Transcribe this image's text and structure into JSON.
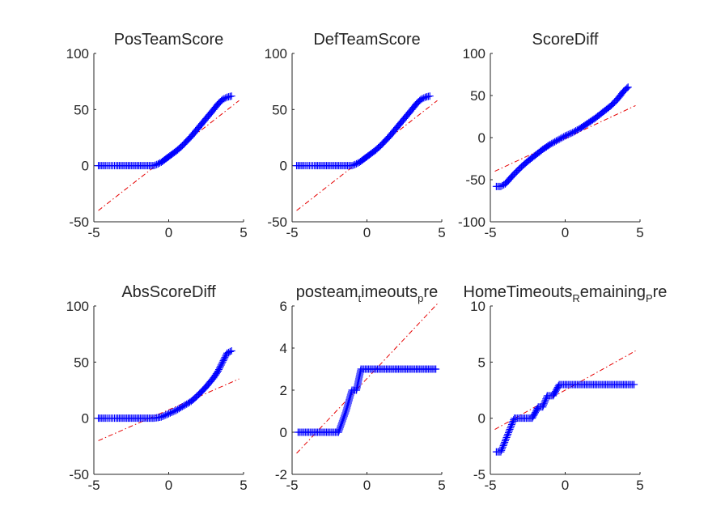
{
  "chart_data": [
    {
      "type": "scatter",
      "title": "PosTeamScore",
      "title_parts": [
        {
          "text": "PosTeamScore"
        }
      ],
      "xlim": [
        -5,
        5
      ],
      "ylim": [
        -50,
        100
      ],
      "xticks": [
        -5,
        0,
        5
      ],
      "yticks": [
        -50,
        0,
        50,
        100
      ],
      "marker_color": "#0000ff",
      "line_color": "#e60000",
      "reference_line": {
        "x": [
          -4.7,
          4.7
        ],
        "y": [
          -40,
          58
        ]
      },
      "series": [
        {
          "x": [
            -4.7,
            -4.2,
            -3.5,
            -3.0,
            -2.5,
            -2.0,
            -1.5,
            -1.0,
            -0.8,
            -0.5,
            -0.2,
            0.0,
            0.3,
            0.6,
            1.0,
            1.5,
            2.0,
            2.5,
            3.0,
            3.3,
            3.6,
            3.9,
            4.2
          ],
          "y": [
            0,
            0,
            0,
            0,
            0,
            0,
            0,
            0,
            1,
            3,
            6,
            8,
            11,
            14,
            19,
            26,
            34,
            42,
            50,
            55,
            59,
            61,
            62
          ]
        }
      ]
    },
    {
      "type": "scatter",
      "title": "DefTeamScore",
      "title_parts": [
        {
          "text": "DefTeamScore"
        }
      ],
      "xlim": [
        -5,
        5
      ],
      "ylim": [
        -50,
        100
      ],
      "xticks": [
        -5,
        0,
        5
      ],
      "yticks": [
        -50,
        0,
        50,
        100
      ],
      "marker_color": "#0000ff",
      "line_color": "#e60000",
      "reference_line": {
        "x": [
          -4.7,
          4.7
        ],
        "y": [
          -40,
          58
        ]
      },
      "series": [
        {
          "x": [
            -4.7,
            -4.2,
            -3.5,
            -3.0,
            -2.5,
            -2.0,
            -1.5,
            -1.0,
            -0.8,
            -0.5,
            -0.2,
            0.0,
            0.3,
            0.6,
            1.0,
            1.5,
            2.0,
            2.5,
            3.0,
            3.3,
            3.6,
            3.9,
            4.2
          ],
          "y": [
            0,
            0,
            0,
            0,
            0,
            0,
            0,
            0,
            1,
            3,
            6,
            8,
            11,
            14,
            19,
            26,
            34,
            42,
            50,
            55,
            59,
            61,
            62
          ]
        }
      ]
    },
    {
      "type": "scatter",
      "title": "ScoreDiff",
      "title_parts": [
        {
          "text": "ScoreDiff"
        }
      ],
      "xlim": [
        -5,
        5
      ],
      "ylim": [
        -100,
        100
      ],
      "xticks": [
        -5,
        0,
        5
      ],
      "yticks": [
        -100,
        -50,
        0,
        50,
        100
      ],
      "marker_color": "#0000ff",
      "line_color": "#e60000",
      "reference_line": {
        "x": [
          -4.7,
          4.7
        ],
        "y": [
          -40,
          38
        ]
      },
      "series": [
        {
          "x": [
            -4.6,
            -4.3,
            -4.0,
            -3.5,
            -3.0,
            -2.5,
            -2.0,
            -1.5,
            -1.0,
            -0.5,
            0.0,
            0.5,
            1.0,
            1.5,
            2.0,
            2.5,
            3.0,
            3.3,
            3.6,
            3.9,
            4.2
          ],
          "y": [
            -58,
            -58,
            -55,
            -45,
            -36,
            -28,
            -21,
            -14,
            -8,
            -3,
            2,
            6,
            11,
            17,
            23,
            30,
            37,
            42,
            48,
            55,
            60
          ]
        }
      ]
    },
    {
      "type": "scatter",
      "title": "AbsScoreDiff",
      "title_parts": [
        {
          "text": "AbsScoreDiff"
        }
      ],
      "xlim": [
        -5,
        5
      ],
      "ylim": [
        -50,
        100
      ],
      "xticks": [
        -5,
        0,
        5
      ],
      "yticks": [
        -50,
        0,
        50,
        100
      ],
      "marker_color": "#0000ff",
      "line_color": "#e60000",
      "reference_line": {
        "x": [
          -4.7,
          4.7
        ],
        "y": [
          -20,
          35
        ]
      },
      "series": [
        {
          "x": [
            -4.7,
            -4.2,
            -3.5,
            -3.0,
            -2.5,
            -2.0,
            -1.5,
            -1.0,
            -0.5,
            0.0,
            0.5,
            1.0,
            1.5,
            2.0,
            2.5,
            3.0,
            3.3,
            3.6,
            3.9,
            4.2
          ],
          "y": [
            0,
            0,
            0,
            0,
            0,
            0,
            0,
            0,
            1,
            4,
            7,
            11,
            15,
            21,
            28,
            36,
            42,
            50,
            58,
            60
          ]
        }
      ]
    },
    {
      "type": "scatter",
      "title": "posteam_timeouts_pre",
      "title_parts": [
        {
          "text": "posteam"
        },
        {
          "text": "t",
          "sub": true
        },
        {
          "text": "imeouts"
        },
        {
          "text": "p",
          "sub": true
        },
        {
          "text": "re"
        }
      ],
      "xlim": [
        -5,
        5
      ],
      "ylim": [
        -2,
        6
      ],
      "xticks": [
        -5,
        0,
        5
      ],
      "yticks": [
        -2,
        0,
        2,
        4,
        6
      ],
      "marker_color": "#0000ff",
      "line_color": "#e60000",
      "reference_line": {
        "x": [
          -4.7,
          4.7
        ],
        "y": [
          -1,
          6.1
        ]
      },
      "series": [
        {
          "x": [
            -4.6,
            -4.2,
            -3.8,
            -3.4,
            -3.0,
            -2.6,
            -2.2,
            -1.9,
            -1.4,
            -1.0,
            -0.7,
            -0.4,
            -0.2,
            0.2,
            0.6,
            1.0,
            1.5,
            2.0,
            2.5,
            3.0,
            3.5,
            4.0,
            4.6
          ],
          "y": [
            0,
            0,
            0,
            0,
            0,
            0,
            0,
            0,
            1,
            2,
            2,
            3,
            3,
            3,
            3,
            3,
            3,
            3,
            3,
            3,
            3,
            3,
            3
          ]
        }
      ]
    },
    {
      "type": "scatter",
      "title": "HomeTimeouts_Remaining_Pre",
      "title_parts": [
        {
          "text": "HomeTimeouts"
        },
        {
          "text": "R",
          "sub": true
        },
        {
          "text": "emaining"
        },
        {
          "text": "P",
          "sub": true
        },
        {
          "text": "re"
        }
      ],
      "xlim": [
        -5,
        5
      ],
      "ylim": [
        -5,
        10
      ],
      "xticks": [
        -5,
        0,
        5
      ],
      "yticks": [
        -5,
        0,
        5,
        10
      ],
      "marker_color": "#0000ff",
      "line_color": "#e60000",
      "reference_line": {
        "x": [
          -4.7,
          4.7
        ],
        "y": [
          -1,
          6
        ]
      },
      "series": [
        {
          "x": [
            -4.6,
            -4.3,
            -4.0,
            -3.7,
            -3.4,
            -3.1,
            -2.8,
            -2.5,
            -2.2,
            -1.8,
            -1.5,
            -1.2,
            -0.8,
            -0.4,
            0.0,
            0.5,
            1.0,
            1.5,
            2.0,
            2.5,
            3.0,
            3.5,
            4.0,
            4.6
          ],
          "y": [
            -3,
            -3,
            -2,
            -1,
            0,
            0,
            0,
            0,
            0,
            1,
            1,
            2,
            2,
            3,
            3,
            3,
            3,
            3,
            3,
            3,
            3,
            3,
            3,
            3
          ]
        }
      ]
    }
  ]
}
